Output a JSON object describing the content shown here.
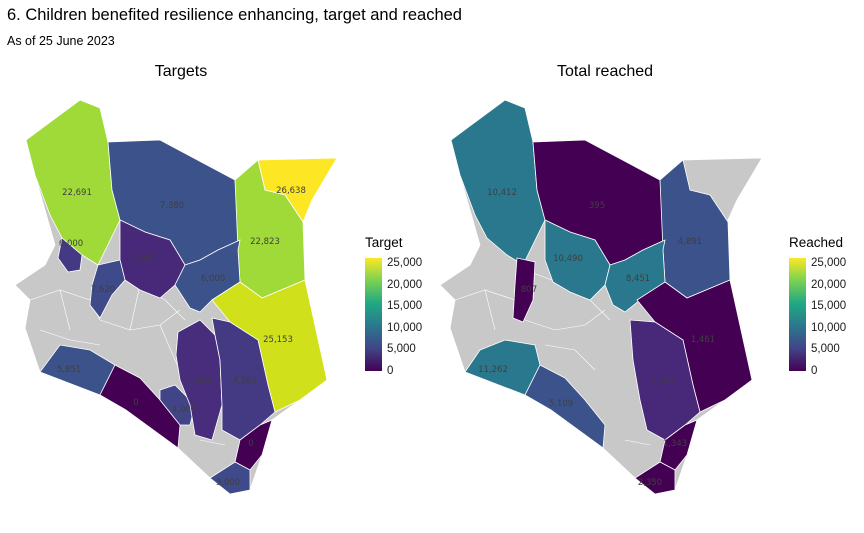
{
  "title": "6. Children benefited resilience enhancing, target and reached",
  "subtitle": "As of 25 June 2023",
  "colors": {
    "no_data": "#c8c8c8",
    "border": "#ffffff",
    "scale_low": "#440154",
    "scale_high": "#fde725"
  },
  "legend_ticks": [
    "25,000",
    "20,000",
    "15,000",
    "10,000",
    "5,000",
    "0"
  ],
  "panels": [
    {
      "title": "Targets",
      "legend_title": "Target",
      "labels": [
        "22,691",
        "7,380",
        "26,638",
        "6,000",
        "4,585",
        "22,823",
        "7,620",
        "6,000",
        "25,153",
        "5,851",
        "4,000",
        "4,583",
        "0",
        "4,000",
        "0",
        "3,000"
      ]
    },
    {
      "title": "Total reached",
      "legend_title": "Reached",
      "labels": [
        "10,412",
        "395",
        "10,490",
        "807",
        "8,451",
        "4,891",
        "11,262",
        "1,461",
        "3,769",
        "5,109",
        "1,343",
        "2,350"
      ]
    }
  ]
}
